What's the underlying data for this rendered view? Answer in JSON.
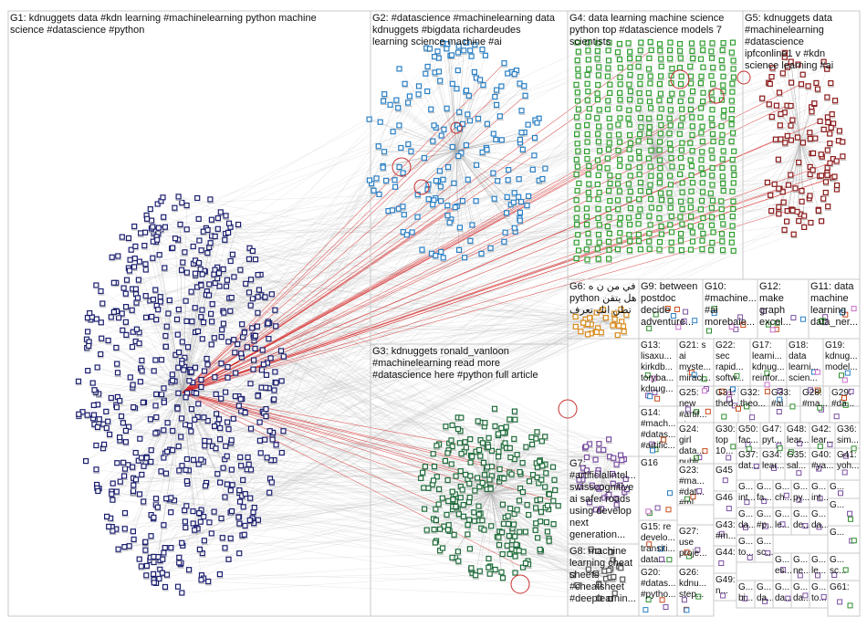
{
  "groups": [
    {
      "id": "G1",
      "label": "G1: kdnuggets data #kdn learning #machinelearning python machine\nscience #datascience #python",
      "color": "#1b1f6e"
    },
    {
      "id": "G2",
      "label": "G2: #datascience #machinelearning data\nkdnuggets #bigdata richardeudes\nlearning science machine #ai",
      "color": "#2a7fc4"
    },
    {
      "id": "G3",
      "label": "G3: kdnuggets ronald_vanloon\n#machinelearning read more\n#datascience here #python full article",
      "color": "#1e6b3a"
    },
    {
      "id": "G4",
      "label": "G4: data learning machine science\npython top #datascience models 7\nscientists",
      "color": "#2e9e2e"
    },
    {
      "id": "G5",
      "label": "G5: kdnuggets data\n#machinelearning\n#datascience\nipfconline1 v #kdn\nscience learning #ai",
      "color": "#8b1a1a"
    },
    {
      "id": "G6",
      "label": "G6: في من ن ه\npython هل يتقن\nتطن انك تعرف",
      "color": "#d98b1a"
    },
    {
      "id": "G7",
      "label": "G7:\n#artificialintel...\nswisscognitive\nai safer roads\nusing develop\nnext\ngeneration...",
      "color": "#7a4fa0"
    },
    {
      "id": "G8",
      "label": "G8: machine\nlearning cheat\nsheets\n#cheatsheet\n#deeplearnin...",
      "color": "#555555"
    },
    {
      "id": "G9",
      "label": "G9: between\npostdoc\ndecide\nadventure...",
      "color": "#c96fc9"
    },
    {
      "id": "G10",
      "label": "G10:\n#machine...\n#ai\nmorebaie...",
      "color": "#777777"
    },
    {
      "id": "G11",
      "label": "G11: data\nmachine\nlearning\ndata_ner...",
      "color": "#3a8f6a"
    },
    {
      "id": "G12",
      "label": "G12:\nmake\ngraph\nexcel...",
      "color": "#5a5a9a"
    },
    {
      "id": "G13",
      "label": "G13:\nlisaxu...\nkirkdb...\ntoryba...\nkdnug...",
      "color": "#444444"
    },
    {
      "id": "G14",
      "label": "G14:\n#mach...\n#datas...\n#artific...",
      "color": "#c94a1a"
    },
    {
      "id": "G15",
      "label": "G15: re\ndevelo...\ntransiti...\ndata...",
      "color": "#555555"
    },
    {
      "id": "G16",
      "label": "G16",
      "color": "#2e8e2e"
    },
    {
      "id": "G17",
      "label": "G17:\nlearni...\nkdnug...\nreinfor...",
      "color": "#555555"
    },
    {
      "id": "G18",
      "label": "G18:\ndata\nlearni...\nscien...",
      "color": "#555555"
    },
    {
      "id": "G19",
      "label": "G19:\nkdnug...\nmodel...",
      "color": "#555555"
    },
    {
      "id": "G20",
      "label": "G20:\n#datas...\n#pytho...",
      "color": "#555555"
    },
    {
      "id": "G21",
      "label": "G21: s\nai\nmyste...\nmiracl...",
      "color": "#555555"
    },
    {
      "id": "G22",
      "label": "G22:\nsec\nrapid...\nsoftw...",
      "color": "#555555"
    },
    {
      "id": "G23",
      "label": "G23:\n#ma...\n#dat...\n#ml...",
      "color": "#555555"
    },
    {
      "id": "G24",
      "label": "G24:\ngirl\ndata...\npubli...",
      "color": "#555555"
    },
    {
      "id": "G25",
      "label": "G25:\nnew\n#artif...\nalgor...",
      "color": "#555555"
    },
    {
      "id": "G26",
      "label": "G26:\nkdnu...\nstep...",
      "color": "#555555"
    },
    {
      "id": "G27",
      "label": "G27:\nuse\nproje...",
      "color": "#555555"
    },
    {
      "id": "G28",
      "label": "G28:\n#ma...",
      "color": "#555555"
    },
    {
      "id": "G29",
      "label": "G29:\n#da...",
      "color": "#555555"
    },
    {
      "id": "G30",
      "label": "G30:\ntop\n10...",
      "color": "#555555"
    },
    {
      "id": "G31",
      "label": "G31:\nthed...",
      "color": "#555555"
    },
    {
      "id": "G32",
      "label": "G32:\ntheo...",
      "color": "#555555"
    },
    {
      "id": "G33",
      "label": "G33:\n#ai",
      "color": "#555555"
    },
    {
      "id": "G34",
      "label": "G34:\nlear...",
      "color": "#555555"
    },
    {
      "id": "G35",
      "label": "G35:\nsal...",
      "color": "#555555"
    },
    {
      "id": "G36",
      "label": "G36:\nsim...",
      "color": "#555555"
    },
    {
      "id": "G37",
      "label": "G37:\ndat...",
      "color": "#555555"
    },
    {
      "id": "G40",
      "label": "G40:\n#ya...",
      "color": "#555555"
    },
    {
      "id": "G41",
      "label": "G41:\nyoh...",
      "color": "#555555"
    },
    {
      "id": "G42",
      "label": "G42:\nlear...",
      "color": "#555555"
    },
    {
      "id": "G43",
      "label": "G43:\n#m...",
      "color": "#555555"
    },
    {
      "id": "G44",
      "label": "G44:",
      "color": "#555555"
    },
    {
      "id": "G45",
      "label": "G45",
      "color": "#555555"
    },
    {
      "id": "G46",
      "label": "G46",
      "color": "#555555"
    },
    {
      "id": "G47",
      "label": "G47:\npyt...",
      "color": "#555555"
    },
    {
      "id": "G48",
      "label": "G48:\nlear...",
      "color": "#555555"
    },
    {
      "id": "G49",
      "label": "G49:\nn...",
      "color": "#555555"
    },
    {
      "id": "G50",
      "label": "G50:\nfac...",
      "color": "#555555"
    },
    {
      "id": "G61",
      "label": "G61:",
      "color": "#555555"
    },
    {
      "id": "Gm1",
      "label": "G...\nint...",
      "color": "#555555"
    },
    {
      "id": "Gm2",
      "label": "G...\nfa...",
      "color": "#555555"
    },
    {
      "id": "Gm3",
      "label": "G...\nch...",
      "color": "#555555"
    },
    {
      "id": "Gm4",
      "label": "G...\npy...",
      "color": "#555555"
    },
    {
      "id": "Gm5",
      "label": "G...\nint...",
      "color": "#555555"
    },
    {
      "id": "Gm6",
      "label": "G...\nda...",
      "color": "#555555"
    },
    {
      "id": "Gm7",
      "label": "G...\n#p...",
      "color": "#555555"
    },
    {
      "id": "Gm8",
      "label": "G...\nle...",
      "color": "#555555"
    },
    {
      "id": "Gm9",
      "label": "G...\nde...",
      "color": "#555555"
    },
    {
      "id": "Gm10",
      "label": "G...\nda...",
      "color": "#555555"
    },
    {
      "id": "Gm11",
      "label": "G...\nto...",
      "color": "#555555"
    },
    {
      "id": "Gm12",
      "label": "G...\nsc...",
      "color": "#555555"
    },
    {
      "id": "Gm13",
      "label": "G...\nes...",
      "color": "#555555"
    },
    {
      "id": "Gm14",
      "label": "G...\nne...",
      "color": "#555555"
    },
    {
      "id": "Gm15",
      "label": "G...\nle...",
      "color": "#555555"
    },
    {
      "id": "Gm16",
      "label": "G...\nbi...",
      "color": "#555555"
    },
    {
      "id": "Gm17",
      "label": "G...\nda...",
      "color": "#555555"
    },
    {
      "id": "Gm18",
      "label": "G...\nda...",
      "color": "#555555"
    },
    {
      "id": "Gm19",
      "label": "G...\nda...",
      "color": "#555555"
    },
    {
      "id": "Gm20",
      "label": "G...\nto...",
      "color": "#555555"
    },
    {
      "id": "Gm21",
      "label": "G...\nsc...",
      "color": "#555555"
    },
    {
      "id": "Gm22",
      "label": "G...",
      "color": "#555555"
    },
    {
      "id": "Gm23",
      "label": "G...",
      "color": "#555555"
    },
    {
      "id": "Gm24",
      "label": "G...",
      "color": "#555555"
    }
  ],
  "colors": {
    "border": "#c8c8c8",
    "edge": "#b0b0b0",
    "highlight_edge": "#d42020"
  }
}
